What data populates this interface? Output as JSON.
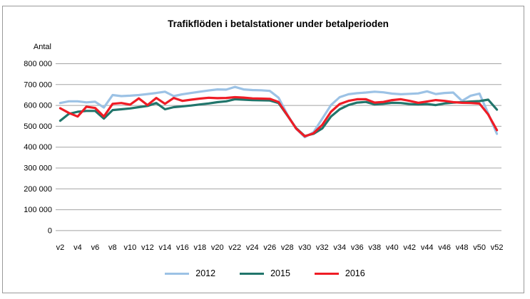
{
  "chart_data": {
    "type": "line",
    "title": "Trafikflöden i betalstationer under betalperioden",
    "ylabel": "Antal",
    "xlabel": "",
    "grid": "horizontal",
    "legend_position": "bottom",
    "ylim": [
      0,
      800000
    ],
    "y_ticks": [
      0,
      100000,
      200000,
      300000,
      400000,
      500000,
      600000,
      700000,
      800000
    ],
    "y_tick_labels": [
      "0",
      "100 000",
      "200 000",
      "300 000",
      "400 000",
      "500 000",
      "600 000",
      "700 000",
      "800 000"
    ],
    "x_tick_labels": [
      "v2",
      "v4",
      "v6",
      "v8",
      "v10",
      "v12",
      "v14",
      "v16",
      "v18",
      "v20",
      "v22",
      "v24",
      "v26",
      "v28",
      "v30",
      "v32",
      "v34",
      "v36",
      "v38",
      "v40",
      "v42",
      "v44",
      "v46",
      "v48",
      "v50",
      "v52"
    ],
    "x_categories": [
      "v2",
      "v3",
      "v4",
      "v5",
      "v6",
      "v7",
      "v8",
      "v9",
      "v10",
      "v11",
      "v12",
      "v13",
      "v14",
      "v15",
      "v16",
      "v17",
      "v18",
      "v19",
      "v20",
      "v21",
      "v22",
      "v23",
      "v24",
      "v25",
      "v26",
      "v27",
      "v28",
      "v29",
      "v30",
      "v31",
      "v32",
      "v33",
      "v34",
      "v35",
      "v36",
      "v37",
      "v38",
      "v39",
      "v40",
      "v41",
      "v42",
      "v43",
      "v44",
      "v45",
      "v46",
      "v47",
      "v48",
      "v49",
      "v50",
      "v51",
      "v52"
    ],
    "series": [
      {
        "name": "2012",
        "color": "#9CC2E5",
        "values": [
          610000,
          618000,
          618000,
          613000,
          616000,
          588000,
          648000,
          643000,
          645000,
          648000,
          653000,
          658000,
          664000,
          643000,
          652000,
          658000,
          664000,
          670000,
          675000,
          674000,
          687000,
          675000,
          672000,
          671000,
          668000,
          635000,
          555000,
          487000,
          446000,
          470000,
          535000,
          600000,
          638000,
          652000,
          657000,
          660000,
          664000,
          661000,
          655000,
          652000,
          654000,
          656000,
          666000,
          653000,
          658000,
          660000,
          620000,
          645000,
          655000,
          560000,
          462000
        ]
      },
      {
        "name": "2015",
        "color": "#21756B",
        "values": [
          525000,
          558000,
          568000,
          572000,
          572000,
          535000,
          576000,
          580000,
          584000,
          590000,
          596000,
          610000,
          580000,
          590000,
          594000,
          598000,
          603000,
          608000,
          614000,
          618000,
          628000,
          626000,
          624000,
          623000,
          622000,
          610000,
          550000,
          490000,
          452000,
          462000,
          488000,
          545000,
          580000,
          600000,
          612000,
          615000,
          603000,
          606000,
          611000,
          610000,
          605000,
          603000,
          605000,
          600000,
          608000,
          612000,
          614000,
          617000,
          619000,
          626000,
          578000
        ]
      },
      {
        "name": "2016",
        "color": "#EF1C25",
        "values": [
          585000,
          562000,
          545000,
          592000,
          586000,
          545000,
          606000,
          610000,
          602000,
          632000,
          600000,
          634000,
          606000,
          634000,
          620000,
          626000,
          631000,
          635000,
          633000,
          634000,
          638000,
          636000,
          632000,
          631000,
          630000,
          615000,
          552000,
          488000,
          450000,
          465000,
          505000,
          568000,
          605000,
          620000,
          628000,
          628000,
          612000,
          615000,
          624000,
          628000,
          620000,
          611000,
          617000,
          624000,
          620000,
          614000,
          611000,
          610000,
          607000,
          555000,
          480000
        ]
      }
    ]
  }
}
